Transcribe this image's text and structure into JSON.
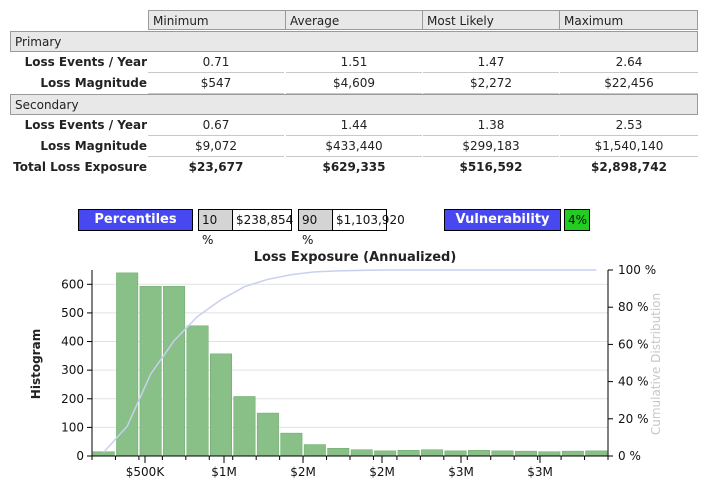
{
  "table": {
    "columns": [
      "Minimum",
      "Average",
      "Most Likely",
      "Maximum"
    ],
    "sections": [
      {
        "name": "Primary",
        "rows": [
          {
            "label": "Loss Events / Year",
            "values": [
              "0.71",
              "1.51",
              "1.47",
              "2.64"
            ]
          },
          {
            "label": "Loss Magnitude",
            "values": [
              "$547",
              "$4,609",
              "$2,272",
              "$22,456"
            ]
          }
        ]
      },
      {
        "name": "Secondary",
        "rows": [
          {
            "label": "Loss Events / Year",
            "values": [
              "0.67",
              "1.44",
              "1.38",
              "2.53"
            ]
          },
          {
            "label": "Loss Magnitude",
            "values": [
              "$9,072",
              "$433,440",
              "$299,183",
              "$1,540,140"
            ]
          }
        ]
      }
    ],
    "total": {
      "label": "Total Loss Exposure",
      "values": [
        "$23,677",
        "$629,335",
        "$516,592",
        "$2,898,742"
      ]
    }
  },
  "controls": {
    "percentiles_label": "Percentiles",
    "p10_label": "10 %",
    "p10_value": "$238,854",
    "p90_label": "90 %",
    "p90_value": "$1,103,920",
    "vulnerability_label": "Vulnerability",
    "vulnerability_value": "4%",
    "colors": {
      "button": "#4848f0",
      "vulnerability": "#22cc22"
    }
  },
  "chart_data": {
    "type": "bar",
    "title": "Loss Exposure (Annualized)",
    "ylabel": "Histogram",
    "y2label": "Cumulative Distribution",
    "ylim": [
      0,
      650
    ],
    "yticks": [
      0,
      100,
      200,
      300,
      400,
      500,
      600
    ],
    "y2ticks": [
      "0 %",
      "20 %",
      "40 %",
      "60 %",
      "80 %",
      "100 %"
    ],
    "xtick_labels": [
      "$500K",
      "$1M",
      "$2M",
      "$2M",
      "$3M",
      "$3M"
    ],
    "values": [
      15,
      640,
      593,
      593,
      455,
      357,
      208,
      150,
      80,
      40,
      27,
      22,
      18,
      20,
      22,
      18,
      20,
      18,
      17,
      15,
      17,
      18
    ],
    "cumulative": [
      0.02,
      0.16,
      0.44,
      0.62,
      0.75,
      0.84,
      0.91,
      0.95,
      0.975,
      0.99,
      0.995,
      0.998,
      1.0,
      1.0,
      1.0,
      1.0,
      1.0,
      1.0,
      1.0,
      1.0,
      1.0,
      1.0
    ],
    "grid": true,
    "colors": {
      "bar": "#88c088",
      "bar_edge": "#6aa86a",
      "cumulative": "#c8d0f0"
    }
  }
}
